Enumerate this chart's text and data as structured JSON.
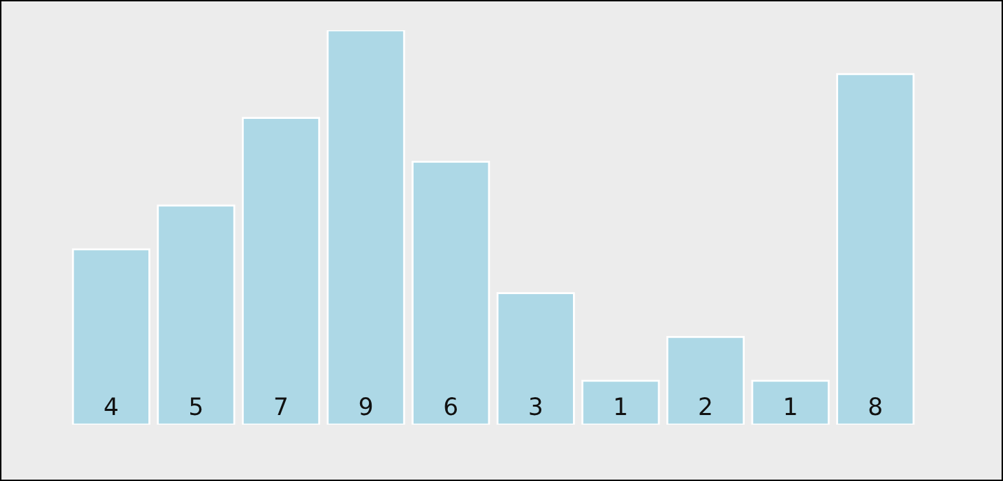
{
  "chart_data": {
    "type": "bar",
    "categories": [
      null,
      null,
      null,
      null,
      null,
      null,
      null,
      null,
      null,
      null
    ],
    "values": [
      4,
      5,
      7,
      9,
      6,
      3,
      1,
      2,
      1,
      8
    ],
    "color": "#add8e6",
    "data_labels": true
  }
}
